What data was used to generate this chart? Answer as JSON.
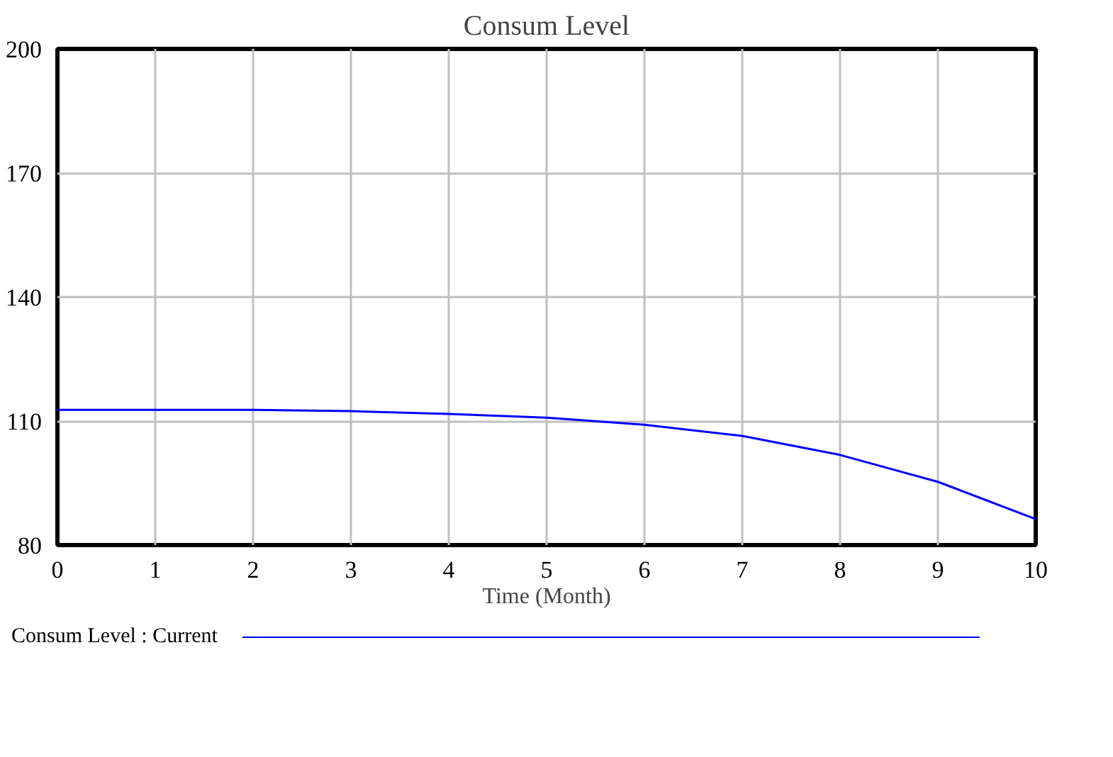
{
  "chart_data": {
    "type": "line",
    "title": "Consum Level",
    "xlabel": "Time (Month)",
    "x": [
      0,
      1,
      2,
      3,
      4,
      5,
      6,
      7,
      8,
      9,
      10
    ],
    "series": [
      {
        "name": "Consum Level : Current",
        "color": "#0000ff",
        "values": [
          112.7,
          112.7,
          112.7,
          112.4,
          111.7,
          110.8,
          109.1,
          106.4,
          101.8,
          95.3,
          86.3
        ]
      }
    ],
    "xlim": [
      0,
      10
    ],
    "ylim": [
      80,
      200
    ],
    "xticks": [
      0,
      1,
      2,
      3,
      4,
      5,
      6,
      7,
      8,
      9,
      10
    ],
    "yticks": [
      80,
      110,
      140,
      170,
      200
    ],
    "grid": true,
    "legend": "bottom",
    "line_style": "solid"
  }
}
